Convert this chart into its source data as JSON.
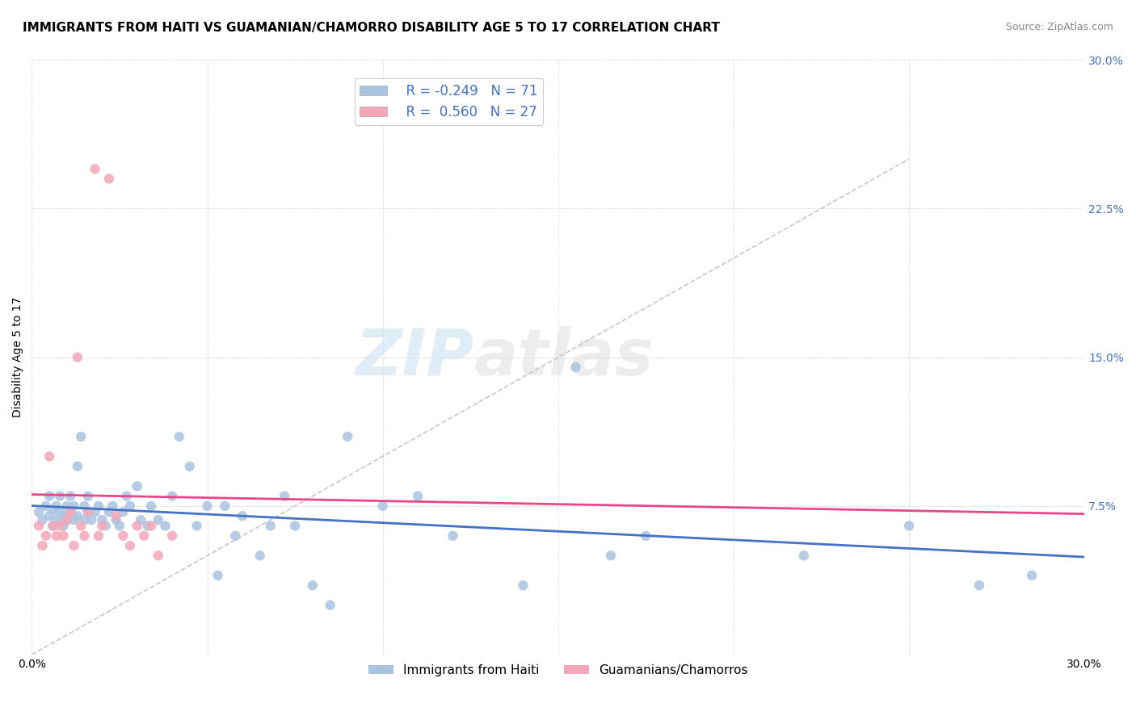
{
  "title": "IMMIGRANTS FROM HAITI VS GUAMANIAN/CHAMORRO DISABILITY AGE 5 TO 17 CORRELATION CHART",
  "source": "Source: ZipAtlas.com",
  "ylabel": "Disability Age 5 to 17",
  "xlim": [
    0.0,
    0.3
  ],
  "ylim": [
    0.0,
    0.3
  ],
  "xticks": [
    0.0,
    0.05,
    0.1,
    0.15,
    0.2,
    0.25,
    0.3
  ],
  "yticks": [
    0.0,
    0.075,
    0.15,
    0.225,
    0.3
  ],
  "xtick_labels": [
    "0.0%",
    "",
    "",
    "",
    "",
    "",
    "30.0%"
  ],
  "ytick_labels": [
    "",
    "7.5%",
    "15.0%",
    "22.5%",
    "30.0%"
  ],
  "legend_entries": [
    {
      "label": "Immigrants from Haiti",
      "color": "#a8c4e0",
      "R": "-0.249",
      "N": "71"
    },
    {
      "label": "Guamanians/Chamorros",
      "color": "#f4a7b9",
      "R": "0.560",
      "N": "27"
    }
  ],
  "haiti_scatter_x": [
    0.002,
    0.003,
    0.004,
    0.005,
    0.005,
    0.006,
    0.006,
    0.007,
    0.007,
    0.008,
    0.008,
    0.009,
    0.009,
    0.01,
    0.01,
    0.011,
    0.011,
    0.012,
    0.012,
    0.013,
    0.013,
    0.014,
    0.015,
    0.015,
    0.016,
    0.016,
    0.017,
    0.018,
    0.019,
    0.02,
    0.021,
    0.022,
    0.023,
    0.024,
    0.025,
    0.026,
    0.027,
    0.028,
    0.03,
    0.031,
    0.033,
    0.034,
    0.036,
    0.038,
    0.04,
    0.042,
    0.045,
    0.047,
    0.05,
    0.053,
    0.055,
    0.058,
    0.06,
    0.065,
    0.068,
    0.072,
    0.075,
    0.08,
    0.085,
    0.09,
    0.1,
    0.11,
    0.12,
    0.14,
    0.155,
    0.165,
    0.175,
    0.22,
    0.25,
    0.27,
    0.285
  ],
  "haiti_scatter_y": [
    0.072,
    0.068,
    0.075,
    0.07,
    0.08,
    0.065,
    0.073,
    0.068,
    0.075,
    0.072,
    0.08,
    0.065,
    0.07,
    0.075,
    0.068,
    0.073,
    0.08,
    0.068,
    0.075,
    0.07,
    0.095,
    0.11,
    0.068,
    0.075,
    0.072,
    0.08,
    0.068,
    0.072,
    0.075,
    0.068,
    0.065,
    0.072,
    0.075,
    0.068,
    0.065,
    0.072,
    0.08,
    0.075,
    0.085,
    0.068,
    0.065,
    0.075,
    0.068,
    0.065,
    0.08,
    0.11,
    0.095,
    0.065,
    0.075,
    0.04,
    0.075,
    0.06,
    0.07,
    0.05,
    0.065,
    0.08,
    0.065,
    0.035,
    0.025,
    0.11,
    0.075,
    0.08,
    0.06,
    0.035,
    0.145,
    0.05,
    0.06,
    0.05,
    0.065,
    0.035,
    0.04
  ],
  "guam_scatter_x": [
    0.002,
    0.003,
    0.004,
    0.005,
    0.006,
    0.007,
    0.008,
    0.009,
    0.01,
    0.011,
    0.012,
    0.013,
    0.014,
    0.015,
    0.016,
    0.018,
    0.019,
    0.02,
    0.022,
    0.024,
    0.026,
    0.028,
    0.03,
    0.032,
    0.034,
    0.036,
    0.04
  ],
  "guam_scatter_y": [
    0.065,
    0.055,
    0.06,
    0.1,
    0.065,
    0.06,
    0.065,
    0.06,
    0.068,
    0.072,
    0.055,
    0.15,
    0.065,
    0.06,
    0.072,
    0.245,
    0.06,
    0.065,
    0.24,
    0.07,
    0.06,
    0.055,
    0.065,
    0.06,
    0.065,
    0.05,
    0.06
  ],
  "haiti_line_color": "#4472c4",
  "guam_line_color": "#e8488a",
  "scatter_blue": "#a8c4e0",
  "scatter_pink": "#f4a7b9",
  "background_color": "#ffffff",
  "grid_color": "#e0e0e0",
  "watermark_zip": "ZIP",
  "watermark_atlas": "atlas",
  "title_fontsize": 11,
  "axis_label_fontsize": 10,
  "tick_fontsize": 10
}
